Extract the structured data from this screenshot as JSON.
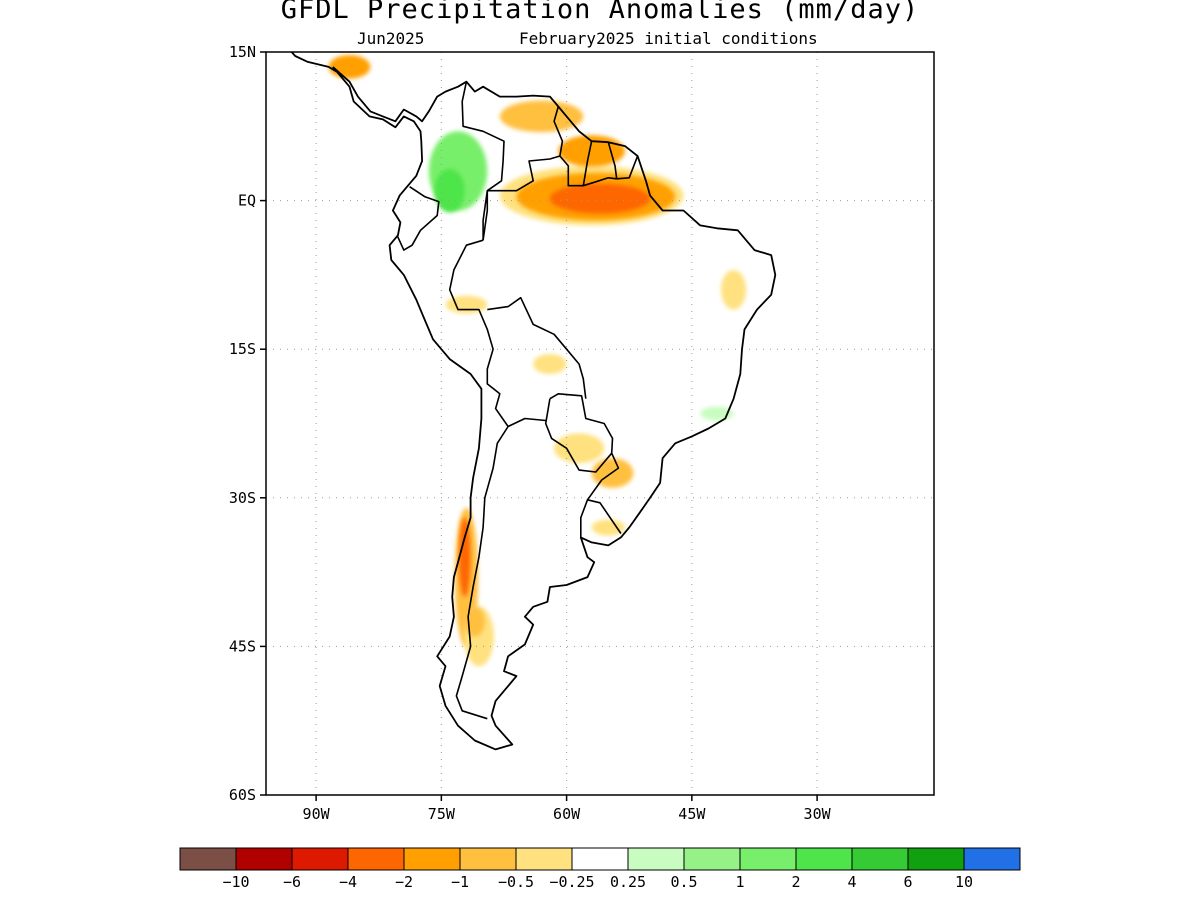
{
  "title": "GFDL Precipitation Anomalies (mm/day)",
  "subtitle": {
    "target_month": "Jun2025",
    "initial_conditions": "February2025 initial conditions"
  },
  "map": {
    "region": "South America",
    "lon_range": [
      -96,
      -16
    ],
    "lat_range": [
      -60,
      15
    ],
    "grid_lines": "dotted",
    "lat_ticks": [
      {
        "value": 15,
        "label": "15N"
      },
      {
        "value": 0,
        "label": "EQ"
      },
      {
        "value": -15,
        "label": "15S"
      },
      {
        "value": -30,
        "label": "30S"
      },
      {
        "value": -45,
        "label": "45S"
      },
      {
        "value": -60,
        "label": "60S"
      }
    ],
    "lon_ticks": [
      {
        "value": -90,
        "label": "90W"
      },
      {
        "value": -75,
        "label": "75W"
      },
      {
        "value": -60,
        "label": "60W"
      },
      {
        "value": -45,
        "label": "45W"
      },
      {
        "value": -30,
        "label": "30W"
      }
    ]
  },
  "legend": {
    "colors": [
      "#7b4f45",
      "#b10000",
      "#dd1a00",
      "#fe6600",
      "#ffa000",
      "#ffc040",
      "#ffe17f",
      "#ffffff",
      "#c8fcc0",
      "#96f287",
      "#78ef6a",
      "#4ee54a",
      "#34cb34",
      "#10a010",
      "#2170e6"
    ],
    "labels": [
      "−10",
      "−6",
      "−4",
      "−2",
      "−1",
      "−0.5",
      "−0.25",
      "0.25",
      "0.5",
      "1",
      "2",
      "4",
      "6",
      "10"
    ]
  },
  "anomaly_regions": [
    {
      "name": "northern-amazon-dry",
      "lon": -57,
      "lat": 0.5,
      "rx": 11,
      "ry": 3,
      "color": "#ffe17f"
    },
    {
      "name": "northern-amazon-moderate",
      "lon": -56.5,
      "lat": 0.4,
      "rx": 9.5,
      "ry": 2.4,
      "color": "#ffa000"
    },
    {
      "name": "northern-amazon-core",
      "lon": -56,
      "lat": 0.2,
      "rx": 6,
      "ry": 1.5,
      "color": "#fe6600"
    },
    {
      "name": "guiana-dry",
      "lon": -57,
      "lat": 5,
      "rx": 4,
      "ry": 1.6,
      "color": "#ffa000"
    },
    {
      "name": "venezuela-dry",
      "lon": -63,
      "lat": 8.5,
      "rx": 5,
      "ry": 1.6,
      "color": "#ffc040"
    },
    {
      "name": "colombia-wet",
      "lon": -73,
      "lat": 3,
      "rx": 3.5,
      "ry": 4,
      "color": "#78ef6a"
    },
    {
      "name": "colombia-wet-core",
      "lon": -74,
      "lat": 1,
      "rx": 1.8,
      "ry": 2.2,
      "color": "#4ee54a"
    },
    {
      "name": "central-america-dry",
      "lon": -86,
      "lat": 13.5,
      "rx": 2.5,
      "ry": 1.2,
      "color": "#ffa000"
    },
    {
      "name": "northeast-brazil-dry",
      "lon": -40,
      "lat": -9,
      "rx": 1.5,
      "ry": 2,
      "color": "#ffe17f"
    },
    {
      "name": "bolivia-dry",
      "lon": -62,
      "lat": -16.5,
      "rx": 2,
      "ry": 1,
      "color": "#ffe17f"
    },
    {
      "name": "peru-dry",
      "lon": -72,
      "lat": -10.5,
      "rx": 2.5,
      "ry": 0.9,
      "color": "#ffe17f"
    },
    {
      "name": "paraguay-dry",
      "lon": -58.5,
      "lat": -25,
      "rx": 3,
      "ry": 1.5,
      "color": "#ffe17f"
    },
    {
      "name": "south-brazil-dry",
      "lon": -54.5,
      "lat": -27.5,
      "rx": 2.5,
      "ry": 1.5,
      "color": "#ffc040"
    },
    {
      "name": "southeast-brazil-wet",
      "lon": -42,
      "lat": -21.5,
      "rx": 2,
      "ry": 0.7,
      "color": "#c8fcc0"
    },
    {
      "name": "uruguay-dry",
      "lon": -55,
      "lat": -33,
      "rx": 2,
      "ry": 0.8,
      "color": "#ffe17f"
    },
    {
      "name": "chile-andes-dry",
      "lon": -72,
      "lat": -38,
      "rx": 1.4,
      "ry": 7,
      "color": "#ffc040"
    },
    {
      "name": "chile-andes-core",
      "lon": -72.2,
      "lat": -36,
      "rx": 0.7,
      "ry": 4,
      "color": "#fe6600"
    },
    {
      "name": "patagonia-dry",
      "lon": -70.5,
      "lat": -44,
      "rx": 1.8,
      "ry": 3,
      "color": "#ffe17f"
    },
    {
      "name": "patagonia-moderate",
      "lon": -71,
      "lat": -42.5,
      "rx": 1.2,
      "ry": 1.5,
      "color": "#ffc040"
    }
  ],
  "coastline_lonlat": [
    [
      -88,
      13.5
    ],
    [
      -86,
      12
    ],
    [
      -85,
      10.5
    ],
    [
      -83.5,
      9
    ],
    [
      -82,
      8.5
    ],
    [
      -80.5,
      8
    ],
    [
      -79.5,
      9.2
    ],
    [
      -78,
      8.5
    ],
    [
      -77.3,
      8
    ],
    [
      -76.5,
      9
    ],
    [
      -75.5,
      10.5
    ],
    [
      -74.5,
      11
    ],
    [
      -73,
      11.5
    ],
    [
      -72,
      12
    ],
    [
      -71,
      11
    ],
    [
      -70,
      11.5
    ],
    [
      -68,
      10.5
    ],
    [
      -66,
      10.5
    ],
    [
      -64,
      10.6
    ],
    [
      -62,
      10.5
    ],
    [
      -61,
      9.5
    ],
    [
      -60,
      8.5
    ],
    [
      -58.5,
      7
    ],
    [
      -57,
      6
    ],
    [
      -55,
      5.9
    ],
    [
      -53,
      5.5
    ],
    [
      -51.5,
      4.5
    ],
    [
      -50.5,
      2
    ],
    [
      -50,
      0.5
    ],
    [
      -48.5,
      -1
    ],
    [
      -46,
      -1
    ],
    [
      -44,
      -2.5
    ],
    [
      -42,
      -2.8
    ],
    [
      -39.5,
      -3
    ],
    [
      -37.5,
      -5
    ],
    [
      -35.5,
      -5.5
    ],
    [
      -35,
      -7.5
    ],
    [
      -35.5,
      -9.5
    ],
    [
      -37.2,
      -11
    ],
    [
      -38.7,
      -13
    ],
    [
      -39,
      -15
    ],
    [
      -39.2,
      -17.5
    ],
    [
      -40,
      -20
    ],
    [
      -41,
      -22
    ],
    [
      -43,
      -23
    ],
    [
      -45,
      -23.8
    ],
    [
      -47,
      -24.5
    ],
    [
      -48.5,
      -26
    ],
    [
      -48.8,
      -28.5
    ],
    [
      -50,
      -30
    ],
    [
      -51,
      -31.2
    ],
    [
      -52.5,
      -33
    ],
    [
      -53.5,
      -34
    ],
    [
      -55,
      -34.8
    ],
    [
      -57,
      -34.5
    ],
    [
      -58.3,
      -34
    ],
    [
      -57.5,
      -36
    ],
    [
      -56.7,
      -36.5
    ],
    [
      -57.5,
      -38
    ],
    [
      -60,
      -38.8
    ],
    [
      -62,
      -39
    ],
    [
      -62.3,
      -40.5
    ],
    [
      -64,
      -41
    ],
    [
      -65,
      -42
    ],
    [
      -64,
      -42.8
    ],
    [
      -65,
      -44.8
    ],
    [
      -67,
      -46
    ],
    [
      -67.5,
      -47.5
    ],
    [
      -66,
      -48
    ],
    [
      -68.5,
      -50.5
    ],
    [
      -69,
      -52
    ],
    [
      -68.5,
      -53
    ],
    [
      -66.5,
      -54.9
    ],
    [
      -68.5,
      -55.4
    ],
    [
      -71,
      -54.5
    ],
    [
      -73,
      -53
    ],
    [
      -74.5,
      -51
    ],
    [
      -75.2,
      -49
    ],
    [
      -74.5,
      -47
    ],
    [
      -75.5,
      -46
    ],
    [
      -74,
      -44
    ],
    [
      -73.5,
      -42
    ],
    [
      -73.7,
      -40
    ],
    [
      -73.5,
      -38
    ],
    [
      -73,
      -36.5
    ],
    [
      -72.2,
      -34
    ],
    [
      -71.5,
      -32
    ],
    [
      -71.5,
      -30
    ],
    [
      -71.2,
      -28
    ],
    [
      -70.5,
      -25
    ],
    [
      -70.2,
      -22
    ],
    [
      -70.2,
      -19
    ],
    [
      -71.5,
      -17.5
    ],
    [
      -74,
      -16
    ],
    [
      -76,
      -14
    ],
    [
      -77,
      -12
    ],
    [
      -78,
      -10
    ],
    [
      -79.5,
      -7.5
    ],
    [
      -81,
      -6
    ],
    [
      -81.2,
      -4.5
    ],
    [
      -80.2,
      -3.5
    ],
    [
      -79.9,
      -2.2
    ],
    [
      -80.8,
      -1
    ],
    [
      -80,
      0.5
    ],
    [
      -79,
      1.5
    ],
    [
      -78,
      2.5
    ],
    [
      -77.3,
      4
    ],
    [
      -77.4,
      6
    ],
    [
      -77.5,
      7
    ],
    [
      -78.3,
      8
    ],
    [
      -79.5,
      8.5
    ],
    [
      -80.5,
      7.4
    ],
    [
      -82,
      8.2
    ],
    [
      -83.6,
      8.5
    ],
    [
      -85.5,
      10
    ],
    [
      -86,
      11.5
    ],
    [
      -87.5,
      13
    ],
    [
      -88.5,
      13.5
    ],
    [
      -91,
      14
    ],
    [
      -92.5,
      14.6
    ],
    [
      -94,
      16
    ],
    [
      -96,
      16
    ]
  ],
  "borders_lonlat": [
    [
      [
        -72,
        12
      ],
      [
        -72.5,
        10
      ],
      [
        -72.4,
        7.5
      ],
      [
        -70,
        7
      ],
      [
        -67.5,
        6
      ],
      [
        -67.6,
        4
      ],
      [
        -67.8,
        2
      ],
      [
        -69.5,
        1
      ],
      [
        -69.5,
        -1
      ],
      [
        -70,
        -4
      ]
    ],
    [
      [
        -70,
        -4
      ],
      [
        -72,
        -4.5
      ],
      [
        -73.5,
        -7
      ],
      [
        -74,
        -9
      ],
      [
        -73,
        -11
      ],
      [
        -70.5,
        -11
      ],
      [
        -69.5,
        -13
      ],
      [
        -68.8,
        -15
      ],
      [
        -69.5,
        -17
      ],
      [
        -69.5,
        -18.5
      ],
      [
        -68,
        -19.5
      ],
      [
        -68.5,
        -21
      ],
      [
        -67,
        -22.8
      ],
      [
        -68.3,
        -24.5
      ],
      [
        -68.8,
        -27
      ],
      [
        -69.8,
        -30
      ],
      [
        -70,
        -33
      ],
      [
        -70.5,
        -36
      ],
      [
        -71.2,
        -39
      ],
      [
        -71.8,
        -42
      ],
      [
        -71.5,
        -45
      ],
      [
        -72.5,
        -48
      ],
      [
        -73.2,
        -50
      ],
      [
        -72.5,
        -51.5
      ],
      [
        -69.5,
        -52.3
      ]
    ],
    [
      [
        -78.8,
        1.4
      ],
      [
        -77,
        0.4
      ],
      [
        -75.3,
        -0.1
      ],
      [
        -75.5,
        -1.5
      ],
      [
        -77.5,
        -3
      ],
      [
        -78.5,
        -4.5
      ],
      [
        -79.5,
        -5
      ],
      [
        -80.3,
        -3.5
      ]
    ],
    [
      [
        -70,
        -4
      ],
      [
        -70,
        -2
      ],
      [
        -69.5,
        1
      ]
    ],
    [
      [
        -61,
        9.5
      ],
      [
        -61.5,
        8
      ],
      [
        -60.5,
        6
      ],
      [
        -60.8,
        4.5
      ],
      [
        -59.8,
        3.5
      ],
      [
        -59.8,
        1.5
      ],
      [
        -58,
        1.5
      ],
      [
        -56.5,
        1.9
      ],
      [
        -55,
        2.3
      ],
      [
        -54,
        2.2
      ],
      [
        -52.5,
        2.3
      ],
      [
        -51.5,
        4.5
      ]
    ],
    [
      [
        -57,
        6
      ],
      [
        -57.5,
        4
      ],
      [
        -58,
        1.5
      ]
    ],
    [
      [
        -55,
        5.9
      ],
      [
        -54.2,
        3.5
      ],
      [
        -54,
        2.2
      ]
    ],
    [
      [
        -69.5,
        1
      ],
      [
        -66,
        1
      ],
      [
        -64,
        2
      ],
      [
        -64.5,
        4
      ],
      [
        -62,
        4.2
      ],
      [
        -60.8,
        4.5
      ]
    ],
    [
      [
        -69.5,
        -11
      ],
      [
        -67,
        -10.7
      ],
      [
        -65.5,
        -9.8
      ],
      [
        -64,
        -12.5
      ],
      [
        -61.5,
        -13.5
      ],
      [
        -60,
        -15
      ],
      [
        -58.5,
        -16.5
      ],
      [
        -58,
        -18
      ],
      [
        -57.7,
        -20
      ]
    ],
    [
      [
        -62,
        -20
      ],
      [
        -61,
        -19.5
      ],
      [
        -58.2,
        -19.7
      ],
      [
        -57.7,
        -22
      ],
      [
        -55.5,
        -22.5
      ],
      [
        -54.5,
        -24
      ],
      [
        -54.6,
        -25.5
      ],
      [
        -56.5,
        -27.4
      ],
      [
        -58.5,
        -27.2
      ],
      [
        -60,
        -25
      ],
      [
        -61.8,
        -24
      ],
      [
        -62.5,
        -22.5
      ],
      [
        -62,
        -20
      ]
    ],
    [
      [
        -67,
        -22.8
      ],
      [
        -65,
        -22
      ],
      [
        -62.5,
        -22.2
      ]
    ],
    [
      [
        -54.6,
        -25.5
      ],
      [
        -53.8,
        -27
      ],
      [
        -55.8,
        -28.2
      ],
      [
        -57.5,
        -30.2
      ],
      [
        -56,
        -30.5
      ],
      [
        -53.5,
        -33.6
      ]
    ],
    [
      [
        -57.5,
        -30.2
      ],
      [
        -58.3,
        -32
      ],
      [
        -58.3,
        -34
      ]
    ]
  ]
}
